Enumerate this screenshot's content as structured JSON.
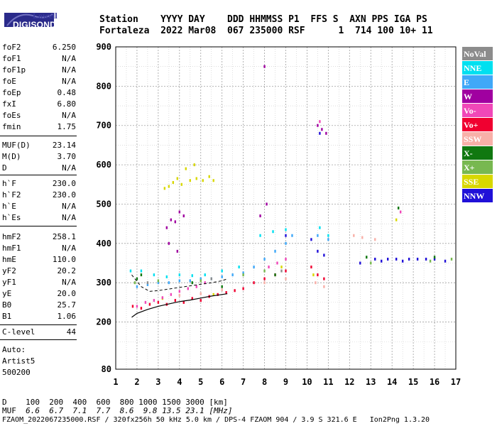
{
  "logo": {
    "top": "Lowell",
    "bottom": "DIGISONDE"
  },
  "header": {
    "line1": "Station    YYYY DAY    DDD HHMMSS P1  FFS S  AXN PPS IGA PS",
    "line2": "Fortaleza  2022 Mar08  067 235000 RSF      1  714 100 10+ 11"
  },
  "params_group1": [
    {
      "name": "foF2",
      "value": "6.250"
    },
    {
      "name": "foF1",
      "value": "N/A"
    },
    {
      "name": "foF1p",
      "value": "N/A"
    },
    {
      "name": "foE",
      "value": "N/A"
    },
    {
      "name": "foEp",
      "value": "0.48"
    },
    {
      "name": "fxI",
      "value": "6.80"
    },
    {
      "name": "foEs",
      "value": "N/A"
    },
    {
      "name": "fmin",
      "value": "1.75"
    }
  ],
  "params_group2": [
    {
      "name": "MUF(D)",
      "value": "23.14"
    },
    {
      "name": "M(D)",
      "value": "3.70"
    },
    {
      "name": "D",
      "value": "N/A"
    }
  ],
  "params_group3": [
    {
      "name": "h`F",
      "value": "230.0"
    },
    {
      "name": "h`F2",
      "value": "230.0"
    },
    {
      "name": "h`E",
      "value": "N/A"
    },
    {
      "name": "h`Es",
      "value": "N/A"
    }
  ],
  "params_group4": [
    {
      "name": "hmF2",
      "value": "258.1"
    },
    {
      "name": "hmF1",
      "value": "N/A"
    },
    {
      "name": "hmE",
      "value": "110.0"
    },
    {
      "name": "yF2",
      "value": "20.2"
    },
    {
      "name": "yF1",
      "value": "N/A"
    },
    {
      "name": "yE",
      "value": "20.0"
    },
    {
      "name": "B0",
      "value": "25.7"
    },
    {
      "name": "B1",
      "value": "1.06"
    }
  ],
  "clevel": {
    "name": "C-level",
    "value": "44"
  },
  "scaling": {
    "line1": "Auto:",
    "line2": "Artist5",
    "line3": "500200"
  },
  "footer": {
    "d_label": "D",
    "d_values": "100  200  400  600  800 1000 1500 3000 [km]",
    "muf_label": "MUF",
    "muf_values": "6.6  6.7  7.1  7.7  8.6  9.8 13.5 23.1 [MHz]",
    "file_line": "FZAOM_2022067235000.RSF / 320fx256h 50 kHz 5.0 km / DPS-4 FZAOM 904 / 3.9 S 321.6 E   Ion2Png 1.3.20"
  },
  "legend": [
    {
      "label": "NoVal",
      "color": "#8c8c8c"
    },
    {
      "label": "NNE",
      "color": "#00e0f0"
    },
    {
      "label": "E",
      "color": "#40a8f8"
    },
    {
      "label": "W",
      "color": "#a000a0"
    },
    {
      "label": "Vo-",
      "color": "#f048b8"
    },
    {
      "label": "Vo+",
      "color": "#f00030"
    },
    {
      "label": "SSW",
      "color": "#f8b0a8"
    },
    {
      "label": "X-",
      "color": "#107810"
    },
    {
      "label": "X+",
      "color": "#78b850"
    },
    {
      "label": "SSE",
      "color": "#d8d800"
    },
    {
      "label": "NNW",
      "color": "#2010d8"
    }
  ],
  "chart_data": {
    "type": "scatter",
    "title": "",
    "xlabel": "",
    "ylabel": "",
    "xlim": [
      1,
      17
    ],
    "ylim": [
      80,
      900
    ],
    "xticks": [
      1,
      2,
      3,
      4,
      5,
      6,
      7,
      8,
      9,
      10,
      11,
      12,
      13,
      14,
      15,
      16,
      17
    ],
    "yticks": [
      80,
      200,
      300,
      400,
      500,
      600,
      700,
      800,
      900
    ],
    "grid": true,
    "legend_position": "right",
    "series": [
      {
        "name": "Vo+",
        "color": "#f00030",
        "points": [
          [
            1.8,
            240
          ],
          [
            2.2,
            235
          ],
          [
            2.6,
            245
          ],
          [
            3.0,
            250
          ],
          [
            3.4,
            245
          ],
          [
            3.8,
            255
          ],
          [
            4.2,
            250
          ],
          [
            4.6,
            260
          ],
          [
            5.0,
            255
          ],
          [
            5.4,
            265
          ],
          [
            5.8,
            270
          ],
          [
            6.2,
            275
          ],
          [
            6.6,
            280
          ],
          [
            7.0,
            285
          ],
          [
            7.5,
            300
          ],
          [
            8.0,
            310
          ],
          [
            8.5,
            320
          ],
          [
            9.0,
            330
          ],
          [
            10.2,
            340
          ],
          [
            10.5,
            320
          ],
          [
            10.8,
            310
          ]
        ]
      },
      {
        "name": "E",
        "color": "#40a8f8",
        "points": [
          [
            2.0,
            290
          ],
          [
            2.5,
            295
          ],
          [
            3.0,
            300
          ],
          [
            3.5,
            300
          ],
          [
            4.0,
            305
          ],
          [
            4.5,
            305
          ],
          [
            5.0,
            310
          ],
          [
            5.5,
            310
          ],
          [
            6.0,
            315
          ],
          [
            6.5,
            320
          ],
          [
            7.0,
            325
          ],
          [
            7.5,
            340
          ],
          [
            8.0,
            360
          ],
          [
            8.5,
            380
          ],
          [
            9.0,
            400
          ],
          [
            9.3,
            420
          ],
          [
            10.5,
            420
          ],
          [
            11.0,
            410
          ]
        ]
      },
      {
        "name": "NNE",
        "color": "#00e0f0",
        "points": [
          [
            1.7,
            330
          ],
          [
            2.2,
            330
          ],
          [
            2.8,
            320
          ],
          [
            3.4,
            315
          ],
          [
            4.0,
            320
          ],
          [
            4.6,
            318
          ],
          [
            5.2,
            320
          ],
          [
            6.0,
            330
          ],
          [
            6.8,
            340
          ],
          [
            7.8,
            420
          ],
          [
            8.4,
            430
          ],
          [
            9.0,
            435
          ],
          [
            10.6,
            440
          ],
          [
            11.0,
            420
          ]
        ]
      },
      {
        "name": "W",
        "color": "#a000a0",
        "points": [
          [
            3.4,
            440
          ],
          [
            3.6,
            460
          ],
          [
            3.8,
            455
          ],
          [
            4.0,
            480
          ],
          [
            4.2,
            470
          ],
          [
            3.5,
            400
          ],
          [
            3.9,
            380
          ],
          [
            7.8,
            470
          ],
          [
            8.1,
            500
          ],
          [
            10.5,
            700
          ],
          [
            10.7,
            690
          ],
          [
            10.9,
            680
          ],
          [
            8.0,
            850
          ]
        ]
      },
      {
        "name": "SSE",
        "color": "#d8d800",
        "points": [
          [
            3.3,
            540
          ],
          [
            3.5,
            545
          ],
          [
            3.7,
            555
          ],
          [
            3.9,
            565
          ],
          [
            4.1,
            550
          ],
          [
            4.5,
            560
          ],
          [
            4.8,
            565
          ],
          [
            5.1,
            560
          ],
          [
            5.4,
            570
          ],
          [
            5.6,
            560
          ],
          [
            4.3,
            590
          ],
          [
            4.7,
            600
          ],
          [
            3.2,
            260
          ],
          [
            5.6,
            270
          ],
          [
            8.8,
            340
          ],
          [
            10.3,
            320
          ],
          [
            14.2,
            460
          ]
        ]
      },
      {
        "name": "NNW",
        "color": "#2010d8",
        "points": [
          [
            9.0,
            420
          ],
          [
            10.2,
            410
          ],
          [
            10.5,
            380
          ],
          [
            10.8,
            370
          ],
          [
            12.5,
            350
          ],
          [
            13.2,
            360
          ],
          [
            13.5,
            355
          ],
          [
            13.8,
            360
          ],
          [
            14.2,
            360
          ],
          [
            14.5,
            355
          ],
          [
            14.8,
            360
          ],
          [
            15.2,
            360
          ],
          [
            15.6,
            360
          ],
          [
            16.0,
            360
          ],
          [
            16.5,
            355
          ],
          [
            10.6,
            680
          ]
        ]
      },
      {
        "name": "Vo-",
        "color": "#f048b8",
        "points": [
          [
            2.0,
            240
          ],
          [
            2.4,
            250
          ],
          [
            2.8,
            255
          ],
          [
            3.2,
            262
          ],
          [
            3.6,
            270
          ],
          [
            4.0,
            278
          ],
          [
            4.4,
            285
          ],
          [
            4.8,
            290
          ],
          [
            5.2,
            300
          ],
          [
            8.2,
            340
          ],
          [
            8.6,
            350
          ],
          [
            9.0,
            360
          ],
          [
            10.6,
            710
          ],
          [
            14.4,
            480
          ]
        ]
      },
      {
        "name": "X-",
        "color": "#107810",
        "points": [
          [
            2.0,
            310
          ],
          [
            2.2,
            320
          ],
          [
            4.6,
            300
          ],
          [
            6.0,
            290
          ],
          [
            8.5,
            320
          ],
          [
            12.8,
            365
          ],
          [
            14.3,
            490
          ],
          [
            16.0,
            365
          ]
        ]
      },
      {
        "name": "X+",
        "color": "#78b850",
        "points": [
          [
            1.9,
            300
          ],
          [
            3.0,
            305
          ],
          [
            5.0,
            305
          ],
          [
            7.0,
            320
          ],
          [
            8.0,
            330
          ],
          [
            13.0,
            350
          ],
          [
            15.8,
            355
          ],
          [
            16.8,
            360
          ]
        ]
      },
      {
        "name": "SSW",
        "color": "#f8b0a8",
        "points": [
          [
            4.0,
            268
          ],
          [
            5.0,
            272
          ],
          [
            6.0,
            282
          ],
          [
            8.0,
            300
          ],
          [
            9.0,
            310
          ],
          [
            10.4,
            300
          ],
          [
            10.8,
            290
          ],
          [
            12.2,
            420
          ],
          [
            12.6,
            415
          ],
          [
            13.2,
            410
          ]
        ]
      },
      {
        "name": "NoVal",
        "color": "#8c8c8c",
        "points": [
          [
            2.5,
            300
          ],
          [
            5.5,
            310
          ],
          [
            8.8,
            330
          ]
        ]
      }
    ],
    "profile_curve": {
      "points": [
        [
          1.75,
          212
        ],
        [
          2.0,
          222
        ],
        [
          2.5,
          232
        ],
        [
          3.0,
          240
        ],
        [
          3.5,
          246
        ],
        [
          4.0,
          252
        ],
        [
          4.5,
          256
        ],
        [
          5.0,
          261
        ],
        [
          5.5,
          266
        ],
        [
          6.0,
          270
        ],
        [
          6.25,
          272
        ]
      ]
    },
    "virtual_height_curve": {
      "points": [
        [
          1.75,
          320
        ],
        [
          2.2,
          290
        ],
        [
          2.6,
          278
        ],
        [
          3.0,
          280
        ],
        [
          3.5,
          284
        ],
        [
          4.0,
          288
        ],
        [
          4.5,
          292
        ],
        [
          5.0,
          296
        ],
        [
          5.5,
          300
        ],
        [
          6.0,
          305
        ],
        [
          6.25,
          310
        ]
      ]
    }
  }
}
